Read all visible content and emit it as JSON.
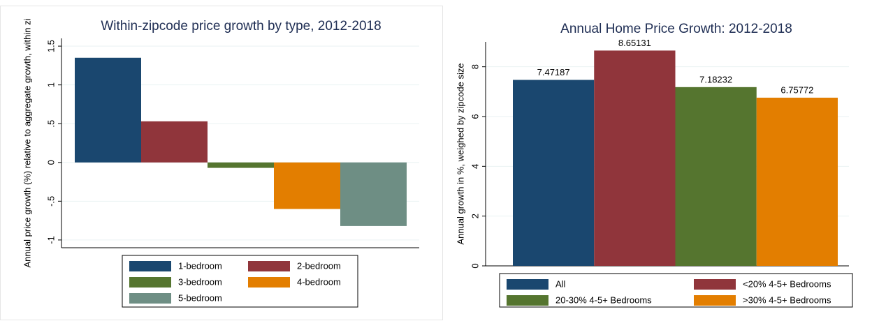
{
  "chart_data": [
    {
      "type": "bar",
      "title": "Within-zipcode price growth by type, 2012-2018",
      "y_label": "Annual price growth (%) relative to aggregate growth, within zi",
      "ylim": [
        -1.1,
        1.6
      ],
      "yticks": [
        -1,
        {
          "value": -0.5,
          "label": "-.5"
        },
        0,
        {
          "value": 0.5,
          "label": ".5"
        },
        1,
        1.5
      ],
      "grid": true,
      "series": [
        {
          "name": "1-bedroom",
          "color": "#1a476f",
          "values": [
            1.35
          ]
        },
        {
          "name": "2-bedroom",
          "color": "#90353b",
          "values": [
            0.53
          ]
        },
        {
          "name": "3-bedroom",
          "color": "#55752f",
          "values": [
            -0.07
          ]
        },
        {
          "name": "4-bedroom",
          "color": "#e37e00",
          "values": [
            -0.6
          ]
        },
        {
          "name": "5-bedroom",
          "color": "#6e8e84",
          "values": [
            -0.82
          ]
        }
      ]
    },
    {
      "type": "bar",
      "title": "Annual Home Price Growth: 2012-2018",
      "y_label": "Annual growth in %, weighed by zipcode size",
      "ylim": [
        0,
        9
      ],
      "yticks": [
        0,
        2,
        4,
        6,
        8
      ],
      "grid": true,
      "series": [
        {
          "name": "All",
          "color": "#1a476f",
          "values": [
            7.47187
          ]
        },
        {
          "name": "<20% 4-5+ Bedrooms",
          "color": "#90353b",
          "values": [
            8.65131
          ]
        },
        {
          "name": "20-30% 4-5+ Bedrooms",
          "color": "#55752f",
          "values": [
            7.18232
          ]
        },
        {
          "name": ">30% 4-5+ Bedrooms",
          "color": "#e37e00",
          "values": [
            6.75772
          ]
        }
      ],
      "show_value_labels": true
    }
  ]
}
